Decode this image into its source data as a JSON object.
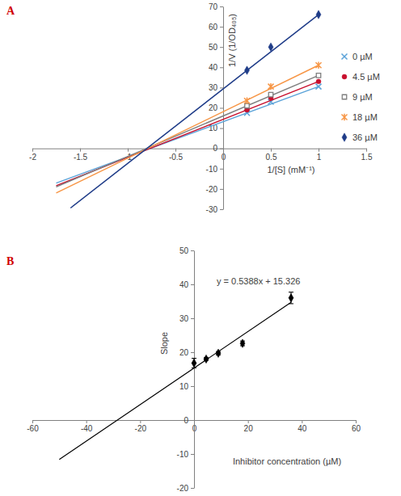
{
  "chart_data": [
    {
      "type": "scatter",
      "title": "A",
      "x_label": "1/[S] (mM⁻¹)",
      "y_label": "1/V (1/OD₄₀₅)",
      "x": [
        0.25,
        0.5,
        1
      ],
      "xlim": [
        -2,
        1.5
      ],
      "xticks": [
        -2,
        -1.5,
        -1,
        -0.5,
        0,
        0.5,
        1,
        1.5
      ],
      "ylim": [
        -30,
        70
      ],
      "yticks": [
        -30,
        -20,
        -10,
        0,
        10,
        20,
        30,
        40,
        50,
        60,
        70
      ],
      "legend": "right",
      "series": [
        {
          "name": "0 µM",
          "color": "#5ba3d9",
          "marker": "x",
          "values": [
            17.5,
            23,
            30.5
          ],
          "trend_x": [
            -1.75,
            1
          ],
          "trend_values": [
            -17.1,
            30.5
          ]
        },
        {
          "name": "4.5 µM",
          "color": "#c8102e",
          "marker": "circle",
          "values": [
            19,
            25,
            33
          ],
          "trend_x": [
            -1.75,
            1
          ],
          "trend_values": [
            -18.4,
            33
          ]
        },
        {
          "name": "9 µM",
          "color": "#7f7f7f",
          "marker": "square",
          "values": [
            21,
            26.5,
            36
          ],
          "trend_x": [
            -1.75,
            1
          ],
          "trend_values": [
            -19,
            36
          ]
        },
        {
          "name": "18 µM",
          "color": "#f79646",
          "marker": "asterisk",
          "values": [
            23.5,
            30.5,
            41
          ],
          "trend_x": [
            -1.75,
            1
          ],
          "trend_values": [
            -22,
            41
          ]
        },
        {
          "name": "36 µM",
          "color": "#1f3c88",
          "marker": "diamond",
          "values": [
            38.5,
            50,
            66
          ],
          "trend_x": [
            -1.6,
            1
          ],
          "trend_values": [
            -29.4,
            66
          ]
        }
      ]
    },
    {
      "type": "scatter",
      "title": "B",
      "x_label": "Inhibitor concentration (µM)",
      "y_label": "Slope",
      "annotation": "y = 0.5388x + 15.326",
      "x": [
        0,
        4.5,
        9,
        18,
        36
      ],
      "values": [
        16.8,
        18,
        19.7,
        22.6,
        36
      ],
      "errors": [
        1.4,
        0.4,
        0.5,
        0.7,
        1.7
      ],
      "trend_x": [
        -50,
        36
      ],
      "trend_values": [
        -11.614,
        34.72
      ],
      "color": "#000000",
      "marker": "diamond",
      "xlim": [
        -60,
        60
      ],
      "xticks": [
        -60,
        -40,
        -20,
        0,
        20,
        40,
        60
      ],
      "ylim": [
        -20,
        50
      ],
      "yticks": [
        -20,
        -10,
        0,
        10,
        20,
        30,
        40,
        50
      ]
    }
  ]
}
